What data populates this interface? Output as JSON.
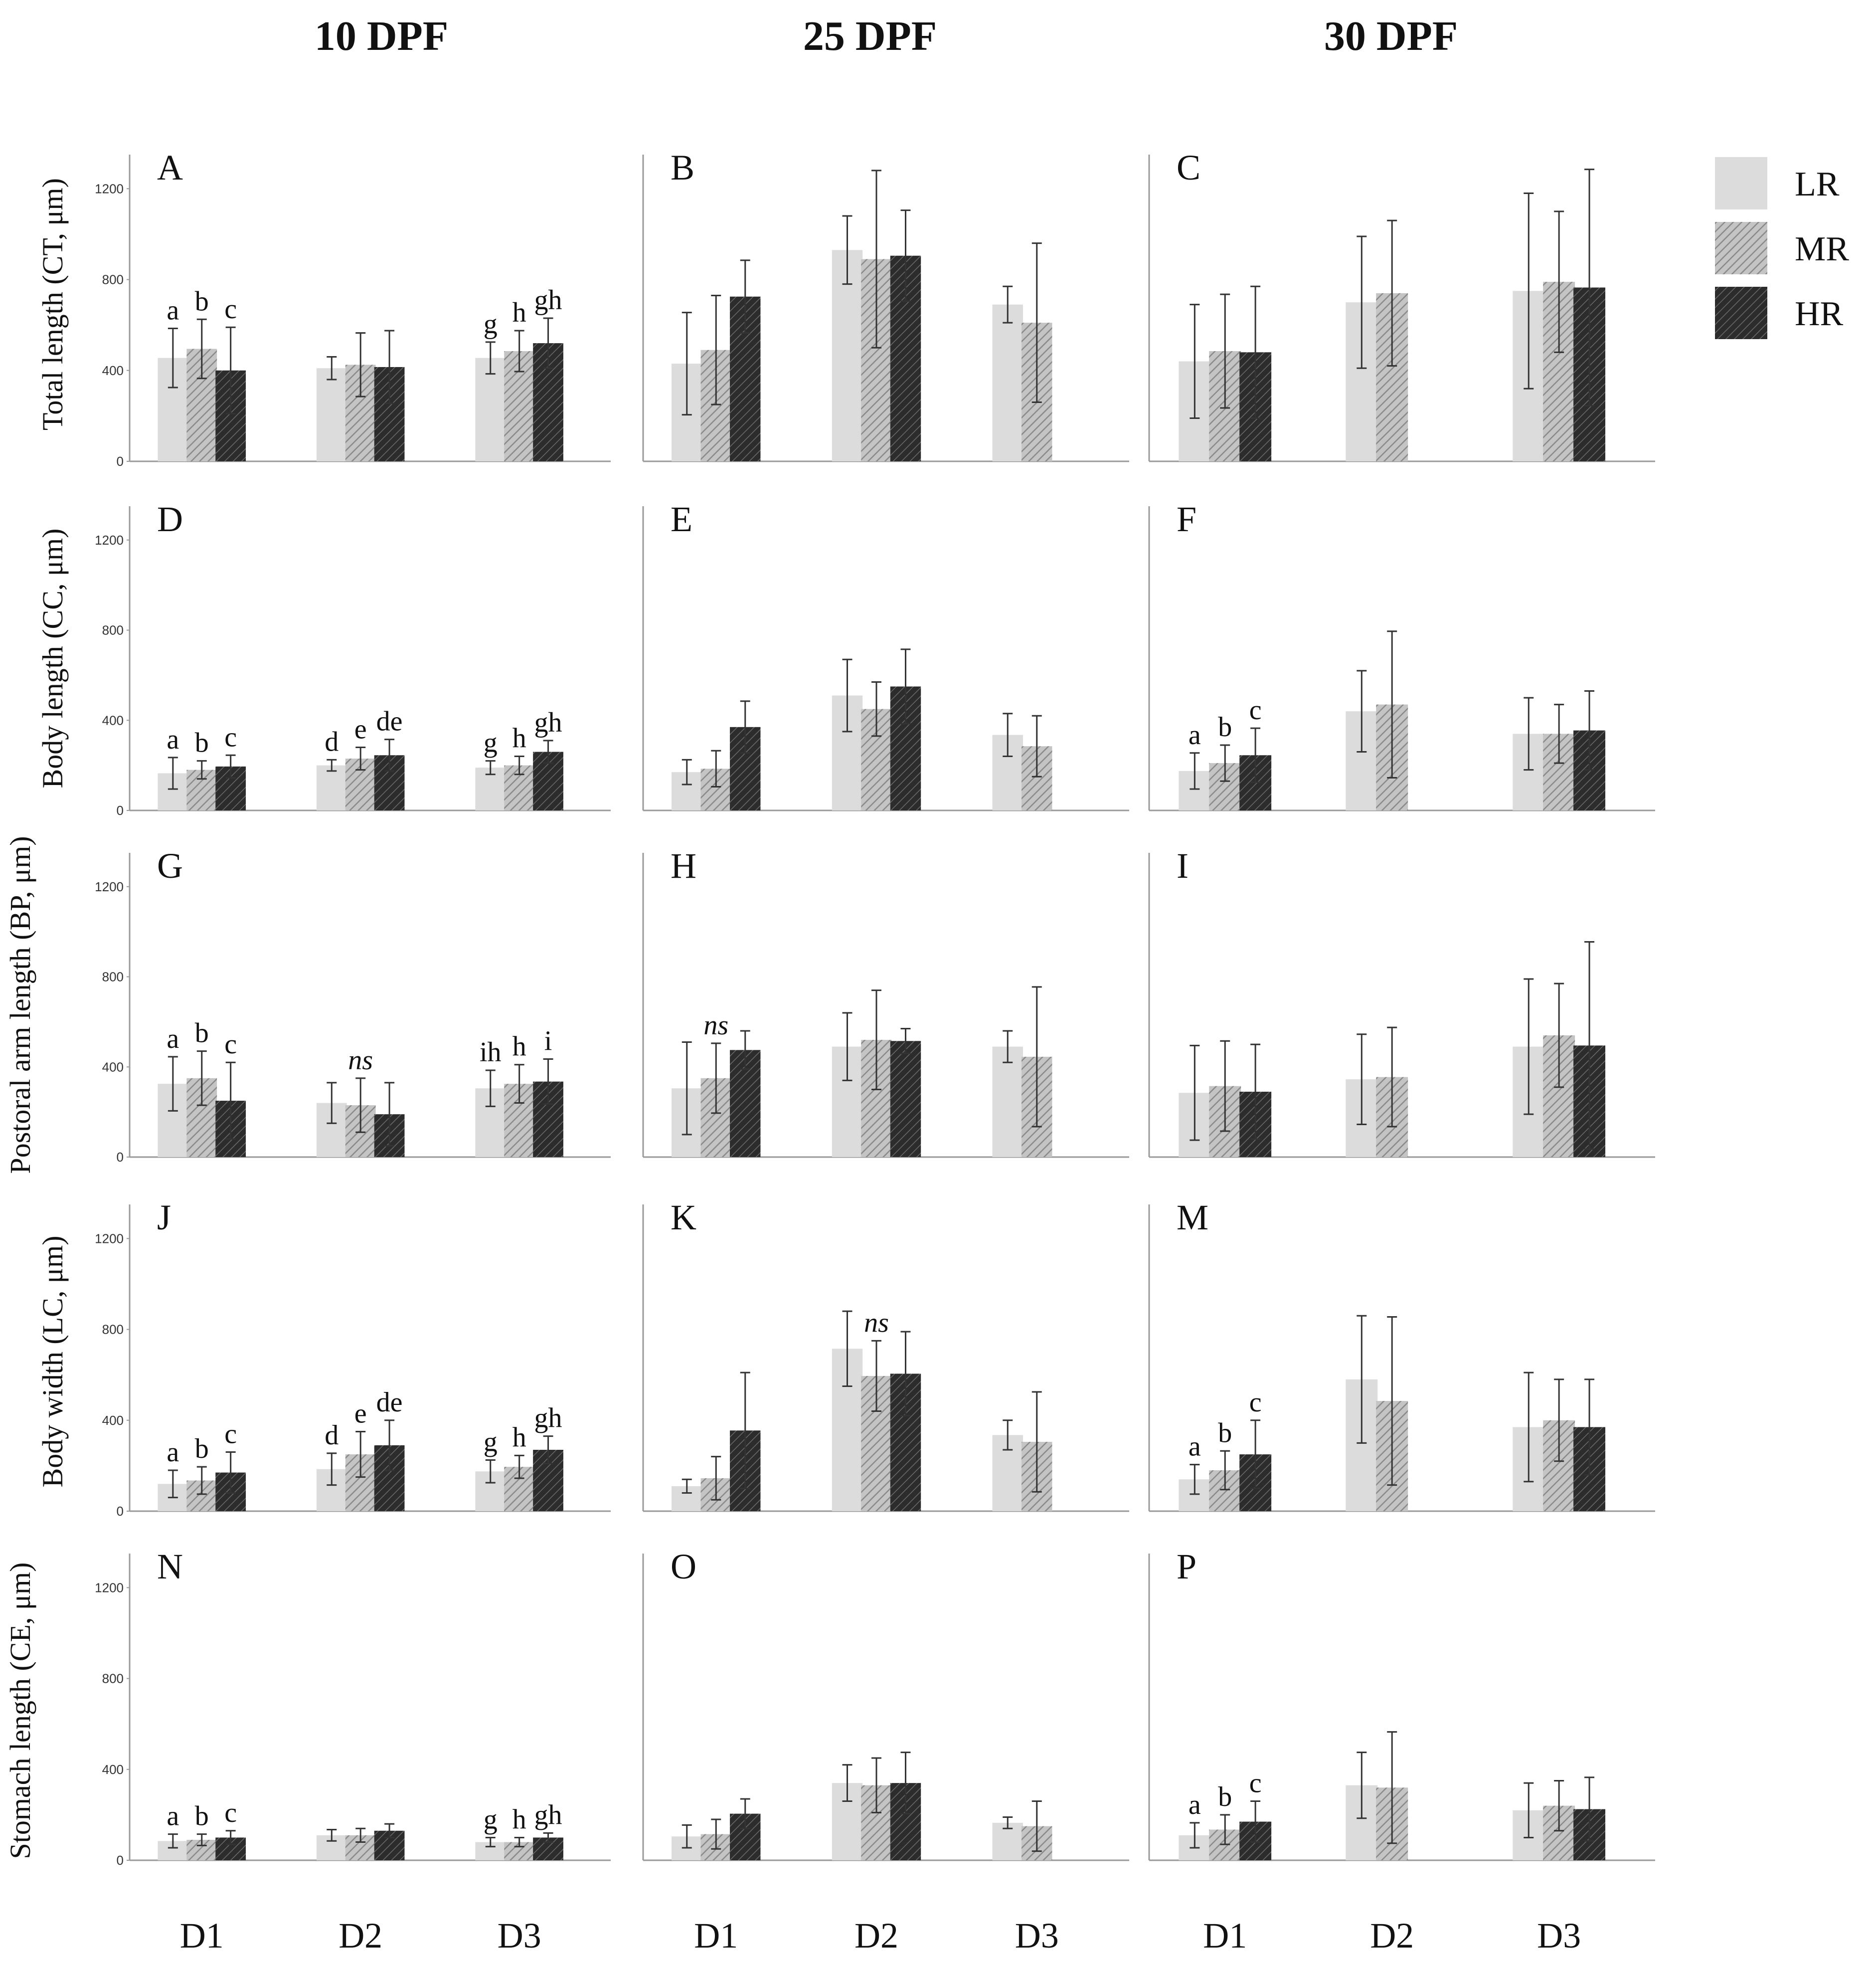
{
  "columns": [
    "10 DPF",
    "25 DPF",
    "30 DPF"
  ],
  "groups": [
    "D1",
    "D2",
    "D3"
  ],
  "series_names": [
    "LR",
    "MR",
    "HR"
  ],
  "colors": {
    "LR": "#dcdcdc",
    "MR": "#a9a9a9",
    "HR": "#3b3b3b",
    "axis": "#999999",
    "error": "#333333"
  },
  "legend": {
    "placement": "top-right",
    "items": [
      "LR",
      "MR",
      "HR"
    ]
  },
  "y_ticks": [
    "0",
    "400",
    "800",
    "1200"
  ],
  "chart_data": [
    {
      "type": "bar",
      "panel": "A",
      "column": "10 DPF",
      "ylabel": "Total length (CT, μm)",
      "ylim": [
        0,
        1350
      ],
      "categories": [
        "D1",
        "D2",
        "D3"
      ],
      "series": [
        {
          "name": "LR",
          "values": [
            455,
            410,
            455
          ],
          "errors": [
            130,
            50,
            70
          ]
        },
        {
          "name": "MR",
          "values": [
            495,
            425,
            485
          ],
          "errors": [
            130,
            140,
            90
          ]
        },
        {
          "name": "HR",
          "values": [
            400,
            415,
            520
          ],
          "errors": [
            190,
            160,
            110
          ]
        }
      ],
      "annotations": [
        [
          "a",
          "b",
          "c"
        ],
        [
          "",
          "",
          ""
        ],
        [
          "g",
          "h",
          "gh"
        ]
      ]
    },
    {
      "type": "bar",
      "panel": "B",
      "column": "25 DPF",
      "ylabel": "",
      "ylim": [
        0,
        1350
      ],
      "categories": [
        "D1",
        "D2",
        "D3"
      ],
      "series": [
        {
          "name": "LR",
          "values": [
            430,
            930,
            690
          ],
          "errors": [
            225,
            150,
            80
          ]
        },
        {
          "name": "MR",
          "values": [
            490,
            890,
            610
          ],
          "errors": [
            240,
            390,
            350
          ]
        },
        {
          "name": "HR",
          "values": [
            725,
            905,
            null
          ],
          "errors": [
            160,
            200,
            null
          ]
        }
      ],
      "annotations": [
        [
          "",
          "",
          ""
        ],
        [
          "",
          "",
          ""
        ],
        [
          "",
          "",
          ""
        ]
      ]
    },
    {
      "type": "bar",
      "panel": "C",
      "column": "30 DPF",
      "ylabel": "",
      "ylim": [
        0,
        1350
      ],
      "categories": [
        "D1",
        "D2",
        "D3"
      ],
      "series": [
        {
          "name": "LR",
          "values": [
            440,
            700,
            750
          ],
          "errors": [
            250,
            290,
            430
          ]
        },
        {
          "name": "MR",
          "values": [
            485,
            740,
            790
          ],
          "errors": [
            250,
            320,
            310
          ]
        },
        {
          "name": "HR",
          "values": [
            480,
            null,
            765
          ],
          "errors": [
            290,
            null,
            520
          ]
        }
      ],
      "annotations": [
        [
          "",
          "",
          ""
        ],
        [
          "",
          "",
          ""
        ],
        [
          "",
          "",
          ""
        ]
      ]
    },
    {
      "type": "bar",
      "panel": "D",
      "column": "10 DPF",
      "ylabel": "Body length (CC, μm)",
      "ylim": [
        0,
        1350
      ],
      "categories": [
        "D1",
        "D2",
        "D3"
      ],
      "series": [
        {
          "name": "LR",
          "values": [
            165,
            200,
            190
          ],
          "errors": [
            70,
            25,
            30
          ]
        },
        {
          "name": "MR",
          "values": [
            180,
            230,
            200
          ],
          "errors": [
            40,
            50,
            40
          ]
        },
        {
          "name": "HR",
          "values": [
            195,
            245,
            260
          ],
          "errors": [
            50,
            70,
            50
          ]
        }
      ],
      "annotations": [
        [
          "a",
          "b",
          "c"
        ],
        [
          "d",
          "e",
          "de"
        ],
        [
          "g",
          "h",
          "gh"
        ]
      ]
    },
    {
      "type": "bar",
      "panel": "E",
      "column": "25 DPF",
      "ylabel": "",
      "ylim": [
        0,
        1350
      ],
      "categories": [
        "D1",
        "D2",
        "D3"
      ],
      "series": [
        {
          "name": "LR",
          "values": [
            170,
            510,
            335
          ],
          "errors": [
            55,
            160,
            95
          ]
        },
        {
          "name": "MR",
          "values": [
            185,
            450,
            285
          ],
          "errors": [
            80,
            120,
            135
          ]
        },
        {
          "name": "HR",
          "values": [
            370,
            550,
            null
          ],
          "errors": [
            115,
            165,
            null
          ]
        }
      ],
      "annotations": [
        [
          "",
          "",
          ""
        ],
        [
          "",
          "",
          ""
        ],
        [
          "",
          "",
          ""
        ]
      ]
    },
    {
      "type": "bar",
      "panel": "F",
      "column": "30 DPF",
      "ylabel": "",
      "ylim": [
        0,
        1350
      ],
      "categories": [
        "D1",
        "D2",
        "D3"
      ],
      "series": [
        {
          "name": "LR",
          "values": [
            175,
            440,
            340
          ],
          "errors": [
            80,
            180,
            160
          ]
        },
        {
          "name": "MR",
          "values": [
            210,
            470,
            340
          ],
          "errors": [
            80,
            325,
            130
          ]
        },
        {
          "name": "HR",
          "values": [
            245,
            null,
            355
          ],
          "errors": [
            120,
            null,
            175
          ]
        }
      ],
      "annotations": [
        [
          "a",
          "b",
          "c"
        ],
        [
          "",
          "",
          ""
        ],
        [
          "",
          "",
          ""
        ]
      ]
    },
    {
      "type": "bar",
      "panel": "G",
      "column": "10 DPF",
      "ylabel": "Postoral arm length (BP, μm)",
      "ylim": [
        0,
        1350
      ],
      "categories": [
        "D1",
        "D2",
        "D3"
      ],
      "series": [
        {
          "name": "LR",
          "values": [
            325,
            240,
            305
          ],
          "errors": [
            120,
            90,
            80
          ]
        },
        {
          "name": "MR",
          "values": [
            350,
            230,
            325
          ],
          "errors": [
            120,
            120,
            85
          ]
        },
        {
          "name": "HR",
          "values": [
            250,
            190,
            335
          ],
          "errors": [
            170,
            140,
            100
          ]
        }
      ],
      "annotations": [
        [
          "a",
          "b",
          "c"
        ],
        [
          "",
          "ns",
          ""
        ],
        [
          "ih",
          "h",
          "i"
        ]
      ]
    },
    {
      "type": "bar",
      "panel": "H",
      "column": "25 DPF",
      "ylabel": "",
      "ylim": [
        0,
        1350
      ],
      "categories": [
        "D1",
        "D2",
        "D3"
      ],
      "series": [
        {
          "name": "LR",
          "values": [
            305,
            490,
            490
          ],
          "errors": [
            205,
            150,
            70
          ]
        },
        {
          "name": "MR",
          "values": [
            350,
            520,
            445
          ],
          "errors": [
            155,
            220,
            310
          ]
        },
        {
          "name": "HR",
          "values": [
            475,
            515,
            null
          ],
          "errors": [
            85,
            55,
            null
          ]
        }
      ],
      "annotations": [
        [
          "",
          "ns",
          ""
        ],
        [
          "",
          "",
          ""
        ],
        [
          "",
          "",
          ""
        ]
      ]
    },
    {
      "type": "bar",
      "panel": "I",
      "column": "30 DPF",
      "ylabel": "",
      "ylim": [
        0,
        1350
      ],
      "categories": [
        "D1",
        "D2",
        "D3"
      ],
      "series": [
        {
          "name": "LR",
          "values": [
            285,
            345,
            490
          ],
          "errors": [
            210,
            200,
            300
          ]
        },
        {
          "name": "MR",
          "values": [
            315,
            355,
            540
          ],
          "errors": [
            200,
            220,
            230
          ]
        },
        {
          "name": "HR",
          "values": [
            290,
            null,
            495
          ],
          "errors": [
            210,
            null,
            460
          ]
        }
      ],
      "annotations": [
        [
          "",
          "",
          ""
        ],
        [
          "",
          "",
          ""
        ],
        [
          "",
          "",
          ""
        ]
      ]
    },
    {
      "type": "bar",
      "panel": "J",
      "column": "10 DPF",
      "ylabel": "Body width (LC, μm)",
      "ylim": [
        0,
        1350
      ],
      "categories": [
        "D1",
        "D2",
        "D3"
      ],
      "series": [
        {
          "name": "LR",
          "values": [
            120,
            185,
            175
          ],
          "errors": [
            60,
            70,
            50
          ]
        },
        {
          "name": "MR",
          "values": [
            135,
            250,
            195
          ],
          "errors": [
            60,
            100,
            50
          ]
        },
        {
          "name": "HR",
          "values": [
            170,
            290,
            270
          ],
          "errors": [
            90,
            110,
            60
          ]
        }
      ],
      "annotations": [
        [
          "a",
          "b",
          "c"
        ],
        [
          "d",
          "e",
          "de"
        ],
        [
          "g",
          "h",
          "gh"
        ]
      ]
    },
    {
      "type": "bar",
      "panel": "K",
      "column": "25 DPF",
      "ylabel": "",
      "ylim": [
        0,
        1350
      ],
      "categories": [
        "D1",
        "D2",
        "D3"
      ],
      "series": [
        {
          "name": "LR",
          "values": [
            110,
            715,
            335
          ],
          "errors": [
            30,
            165,
            65
          ]
        },
        {
          "name": "MR",
          "values": [
            145,
            595,
            305
          ],
          "errors": [
            95,
            155,
            220
          ]
        },
        {
          "name": "HR",
          "values": [
            355,
            605,
            null
          ],
          "errors": [
            255,
            185,
            null
          ]
        }
      ],
      "annotations": [
        [
          "",
          "",
          ""
        ],
        [
          "",
          "ns",
          ""
        ],
        [
          "",
          "",
          ""
        ]
      ]
    },
    {
      "type": "bar",
      "panel": "M",
      "column": "30 DPF",
      "ylabel": "",
      "ylim": [
        0,
        1350
      ],
      "categories": [
        "D1",
        "D2",
        "D3"
      ],
      "series": [
        {
          "name": "LR",
          "values": [
            140,
            580,
            370
          ],
          "errors": [
            65,
            280,
            240
          ]
        },
        {
          "name": "MR",
          "values": [
            180,
            485,
            400
          ],
          "errors": [
            85,
            370,
            180
          ]
        },
        {
          "name": "HR",
          "values": [
            250,
            null,
            370
          ],
          "errors": [
            150,
            null,
            210
          ]
        }
      ],
      "annotations": [
        [
          "a",
          "b",
          "c"
        ],
        [
          "",
          "",
          ""
        ],
        [
          "",
          "",
          ""
        ]
      ]
    },
    {
      "type": "bar",
      "panel": "N",
      "column": "10 DPF",
      "ylabel": "Stomach length (CE, μm)",
      "ylim": [
        0,
        1350
      ],
      "categories": [
        "D1",
        "D2",
        "D3"
      ],
      "series": [
        {
          "name": "LR",
          "values": [
            85,
            110,
            80
          ],
          "errors": [
            30,
            25,
            20
          ]
        },
        {
          "name": "MR",
          "values": [
            90,
            110,
            80
          ],
          "errors": [
            25,
            30,
            20
          ]
        },
        {
          "name": "HR",
          "values": [
            100,
            130,
            100
          ],
          "errors": [
            30,
            30,
            20
          ]
        }
      ],
      "annotations": [
        [
          "a",
          "b",
          "c"
        ],
        [
          "",
          "",
          ""
        ],
        [
          "g",
          "h",
          "gh"
        ]
      ]
    },
    {
      "type": "bar",
      "panel": "O",
      "column": "25 DPF",
      "ylabel": "",
      "ylim": [
        0,
        1350
      ],
      "categories": [
        "D1",
        "D2",
        "D3"
      ],
      "series": [
        {
          "name": "LR",
          "values": [
            105,
            340,
            165
          ],
          "errors": [
            50,
            80,
            25
          ]
        },
        {
          "name": "MR",
          "values": [
            115,
            330,
            150
          ],
          "errors": [
            65,
            120,
            110
          ]
        },
        {
          "name": "HR",
          "values": [
            205,
            340,
            null
          ],
          "errors": [
            65,
            135,
            null
          ]
        }
      ],
      "annotations": [
        [
          "",
          "",
          ""
        ],
        [
          "",
          "",
          ""
        ],
        [
          "",
          "",
          ""
        ]
      ]
    },
    {
      "type": "bar",
      "panel": "P",
      "column": "30 DPF",
      "ylabel": "",
      "ylim": [
        0,
        1350
      ],
      "categories": [
        "D1",
        "D2",
        "D3"
      ],
      "series": [
        {
          "name": "LR",
          "values": [
            110,
            330,
            220
          ],
          "errors": [
            55,
            145,
            120
          ]
        },
        {
          "name": "MR",
          "values": [
            135,
            320,
            240
          ],
          "errors": [
            65,
            245,
            110
          ]
        },
        {
          "name": "HR",
          "values": [
            170,
            null,
            225
          ],
          "errors": [
            90,
            null,
            140
          ]
        }
      ],
      "annotations": [
        [
          "a",
          "b",
          "c"
        ],
        [
          "",
          "",
          ""
        ],
        [
          "",
          "",
          ""
        ]
      ]
    }
  ]
}
